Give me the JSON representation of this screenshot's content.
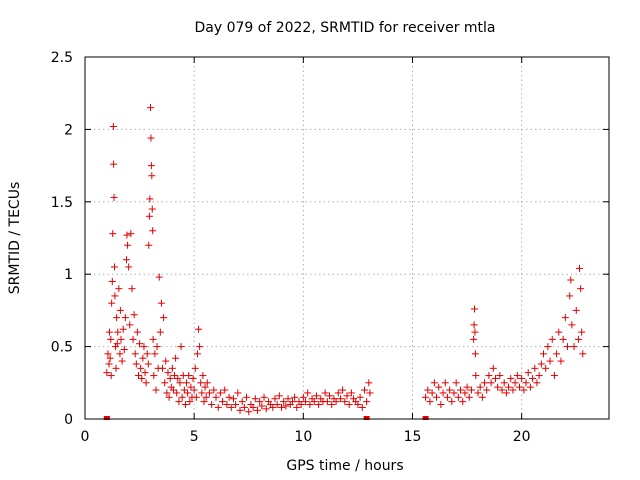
{
  "chart_data": {
    "type": "scatter",
    "title": "Day 079 of 2022, SRMTID for receiver mtla",
    "xlabel": "GPS time / hours",
    "ylabel": "SRMTID / TECUs",
    "xlim": [
      0,
      24
    ],
    "ylim": [
      0,
      2.5
    ],
    "x_ticks": [
      0,
      5,
      10,
      15,
      20
    ],
    "x_tick_labels": [
      "0",
      "5",
      "10",
      "15",
      "20"
    ],
    "y_ticks": [
      0,
      0.5,
      1,
      1.5,
      2,
      2.5
    ],
    "y_tick_labels": [
      "0",
      "0.5",
      "1",
      "1.5",
      "2",
      "2.5"
    ],
    "grid": true,
    "marker": "+",
    "color": "#e00000",
    "series": [
      {
        "name": "SRMTID",
        "points": [
          [
            1.0,
            0.32
          ],
          [
            1.05,
            0.45
          ],
          [
            1.1,
            0.38
          ],
          [
            1.12,
            0.6
          ],
          [
            1.15,
            0.42
          ],
          [
            1.18,
            0.55
          ],
          [
            1.2,
            0.3
          ],
          [
            1.22,
            0.8
          ],
          [
            1.25,
            0.95
          ],
          [
            1.27,
            1.28
          ],
          [
            1.3,
            2.02
          ],
          [
            1.31,
            1.76
          ],
          [
            1.33,
            1.53
          ],
          [
            1.35,
            1.05
          ],
          [
            1.37,
            0.85
          ],
          [
            1.4,
            0.5
          ],
          [
            1.42,
            0.35
          ],
          [
            1.45,
            0.7
          ],
          [
            1.48,
            0.52
          ],
          [
            1.5,
            0.6
          ],
          [
            1.55,
            0.9
          ],
          [
            1.6,
            0.45
          ],
          [
            1.62,
            0.75
          ],
          [
            1.65,
            0.55
          ],
          [
            1.7,
            0.4
          ],
          [
            1.75,
            0.62
          ],
          [
            1.8,
            0.48
          ],
          [
            1.85,
            0.7
          ],
          [
            1.9,
            1.1
          ],
          [
            1.92,
            1.27
          ],
          [
            1.95,
            1.2
          ],
          [
            2.0,
            1.05
          ],
          [
            2.05,
            0.65
          ],
          [
            2.1,
            1.28
          ],
          [
            2.15,
            0.9
          ],
          [
            2.2,
            0.55
          ],
          [
            2.25,
            0.72
          ],
          [
            2.3,
            0.45
          ],
          [
            2.35,
            0.38
          ],
          [
            2.4,
            0.6
          ],
          [
            2.45,
            0.3
          ],
          [
            2.5,
            0.52
          ],
          [
            2.55,
            0.35
          ],
          [
            2.6,
            0.28
          ],
          [
            2.65,
            0.42
          ],
          [
            2.7,
            0.5
          ],
          [
            2.75,
            0.32
          ],
          [
            2.8,
            0.25
          ],
          [
            2.85,
            0.45
          ],
          [
            2.9,
            0.38
          ],
          [
            2.92,
            1.2
          ],
          [
            2.95,
            1.4
          ],
          [
            2.97,
            1.52
          ],
          [
            3.0,
            2.15
          ],
          [
            3.02,
            1.94
          ],
          [
            3.04,
            1.75
          ],
          [
            3.06,
            1.68
          ],
          [
            3.08,
            1.45
          ],
          [
            3.1,
            1.3
          ],
          [
            3.12,
            0.55
          ],
          [
            3.15,
            0.3
          ],
          [
            3.2,
            0.45
          ],
          [
            3.25,
            0.2
          ],
          [
            3.3,
            0.5
          ],
          [
            3.35,
            0.35
          ],
          [
            3.4,
            0.98
          ],
          [
            3.45,
            0.6
          ],
          [
            3.5,
            0.8
          ],
          [
            3.55,
            0.35
          ],
          [
            3.6,
            0.7
          ],
          [
            3.65,
            0.25
          ],
          [
            3.7,
            0.4
          ],
          [
            3.75,
            0.18
          ],
          [
            3.8,
            0.32
          ],
          [
            3.85,
            0.15
          ],
          [
            3.9,
            0.28
          ],
          [
            3.95,
            0.22
          ],
          [
            4.0,
            0.35
          ],
          [
            4.05,
            0.2
          ],
          [
            4.1,
            0.3
          ],
          [
            4.15,
            0.42
          ],
          [
            4.2,
            0.18
          ],
          [
            4.25,
            0.28
          ],
          [
            4.3,
            0.12
          ],
          [
            4.35,
            0.25
          ],
          [
            4.4,
            0.5
          ],
          [
            4.45,
            0.15
          ],
          [
            4.5,
            0.3
          ],
          [
            4.55,
            0.2
          ],
          [
            4.6,
            0.1
          ],
          [
            4.65,
            0.25
          ],
          [
            4.7,
            0.18
          ],
          [
            4.75,
            0.3
          ],
          [
            4.8,
            0.12
          ],
          [
            4.85,
            0.22
          ],
          [
            4.9,
            0.15
          ],
          [
            4.95,
            0.28
          ],
          [
            5.0,
            0.2
          ],
          [
            5.05,
            0.35
          ],
          [
            5.1,
            0.15
          ],
          [
            5.15,
            0.45
          ],
          [
            5.2,
            0.62
          ],
          [
            5.25,
            0.5
          ],
          [
            5.3,
            0.25
          ],
          [
            5.35,
            0.18
          ],
          [
            5.4,
            0.3
          ],
          [
            5.45,
            0.12
          ],
          [
            5.5,
            0.22
          ],
          [
            5.55,
            0.15
          ],
          [
            5.6,
            0.25
          ],
          [
            5.7,
            0.18
          ],
          [
            5.8,
            0.1
          ],
          [
            5.9,
            0.2
          ],
          [
            6.0,
            0.15
          ],
          [
            6.1,
            0.08
          ],
          [
            6.2,
            0.18
          ],
          [
            6.3,
            0.12
          ],
          [
            6.4,
            0.2
          ],
          [
            6.5,
            0.1
          ],
          [
            6.6,
            0.15
          ],
          [
            6.7,
            0.08
          ],
          [
            6.8,
            0.14
          ],
          [
            6.9,
            0.1
          ],
          [
            7.0,
            0.18
          ],
          [
            7.1,
            0.06
          ],
          [
            7.2,
            0.12
          ],
          [
            7.3,
            0.08
          ],
          [
            7.4,
            0.15
          ],
          [
            7.5,
            0.05
          ],
          [
            7.6,
            0.1
          ],
          [
            7.7,
            0.08
          ],
          [
            7.8,
            0.14
          ],
          [
            7.9,
            0.06
          ],
          [
            8.0,
            0.12
          ],
          [
            8.1,
            0.09
          ],
          [
            8.2,
            0.15
          ],
          [
            8.3,
            0.07
          ],
          [
            8.4,
            0.12
          ],
          [
            8.5,
            0.1
          ],
          [
            8.6,
            0.08
          ],
          [
            8.7,
            0.14
          ],
          [
            8.8,
            0.1
          ],
          [
            8.9,
            0.16
          ],
          [
            9.0,
            0.08
          ],
          [
            9.1,
            0.12
          ],
          [
            9.2,
            0.09
          ],
          [
            9.3,
            0.14
          ],
          [
            9.4,
            0.1
          ],
          [
            9.5,
            0.12
          ],
          [
            9.6,
            0.15
          ],
          [
            9.7,
            0.08
          ],
          [
            9.8,
            0.12
          ],
          [
            9.9,
            0.1
          ],
          [
            10.0,
            0.15
          ],
          [
            10.1,
            0.12
          ],
          [
            10.2,
            0.18
          ],
          [
            10.3,
            0.1
          ],
          [
            10.4,
            0.14
          ],
          [
            10.5,
            0.12
          ],
          [
            10.6,
            0.16
          ],
          [
            10.7,
            0.1
          ],
          [
            10.8,
            0.14
          ],
          [
            10.9,
            0.12
          ],
          [
            11.0,
            0.18
          ],
          [
            11.1,
            0.12
          ],
          [
            11.2,
            0.16
          ],
          [
            11.3,
            0.1
          ],
          [
            11.4,
            0.14
          ],
          [
            11.5,
            0.12
          ],
          [
            11.6,
            0.18
          ],
          [
            11.7,
            0.14
          ],
          [
            11.8,
            0.2
          ],
          [
            11.9,
            0.12
          ],
          [
            12.0,
            0.16
          ],
          [
            12.1,
            0.1
          ],
          [
            12.2,
            0.18
          ],
          [
            12.3,
            0.14
          ],
          [
            12.4,
            0.12
          ],
          [
            12.5,
            0.1
          ],
          [
            12.6,
            0.15
          ],
          [
            12.7,
            0.08
          ],
          [
            12.8,
            0.2
          ],
          [
            12.9,
            0.12
          ],
          [
            13.0,
            0.25
          ],
          [
            13.05,
            0.18
          ],
          [
            15.6,
            0.15
          ],
          [
            15.7,
            0.2
          ],
          [
            15.8,
            0.12
          ],
          [
            15.9,
            0.18
          ],
          [
            16.0,
            0.25
          ],
          [
            16.1,
            0.15
          ],
          [
            16.2,
            0.22
          ],
          [
            16.3,
            0.1
          ],
          [
            16.4,
            0.18
          ],
          [
            16.5,
            0.25
          ],
          [
            16.6,
            0.15
          ],
          [
            16.7,
            0.2
          ],
          [
            16.8,
            0.12
          ],
          [
            16.9,
            0.18
          ],
          [
            17.0,
            0.25
          ],
          [
            17.1,
            0.15
          ],
          [
            17.2,
            0.2
          ],
          [
            17.3,
            0.12
          ],
          [
            17.4,
            0.18
          ],
          [
            17.5,
            0.22
          ],
          [
            17.6,
            0.15
          ],
          [
            17.7,
            0.2
          ],
          [
            17.8,
            0.55
          ],
          [
            17.82,
            0.65
          ],
          [
            17.84,
            0.76
          ],
          [
            17.86,
            0.6
          ],
          [
            17.88,
            0.45
          ],
          [
            17.9,
            0.3
          ],
          [
            18.0,
            0.18
          ],
          [
            18.1,
            0.22
          ],
          [
            18.2,
            0.15
          ],
          [
            18.3,
            0.25
          ],
          [
            18.4,
            0.2
          ],
          [
            18.5,
            0.3
          ],
          [
            18.6,
            0.25
          ],
          [
            18.7,
            0.35
          ],
          [
            18.8,
            0.28
          ],
          [
            18.9,
            0.22
          ],
          [
            19.0,
            0.3
          ],
          [
            19.1,
            0.2
          ],
          [
            19.2,
            0.25
          ],
          [
            19.3,
            0.18
          ],
          [
            19.4,
            0.22
          ],
          [
            19.5,
            0.28
          ],
          [
            19.6,
            0.2
          ],
          [
            19.7,
            0.25
          ],
          [
            19.8,
            0.3
          ],
          [
            19.9,
            0.22
          ],
          [
            20.0,
            0.28
          ],
          [
            20.1,
            0.2
          ],
          [
            20.2,
            0.25
          ],
          [
            20.3,
            0.32
          ],
          [
            20.4,
            0.22
          ],
          [
            20.5,
            0.28
          ],
          [
            20.6,
            0.35
          ],
          [
            20.7,
            0.25
          ],
          [
            20.8,
            0.3
          ],
          [
            20.9,
            0.38
          ],
          [
            21.0,
            0.45
          ],
          [
            21.1,
            0.35
          ],
          [
            21.2,
            0.5
          ],
          [
            21.3,
            0.4
          ],
          [
            21.4,
            0.55
          ],
          [
            21.5,
            0.3
          ],
          [
            21.6,
            0.45
          ],
          [
            21.7,
            0.6
          ],
          [
            21.8,
            0.4
          ],
          [
            21.9,
            0.55
          ],
          [
            22.0,
            0.7
          ],
          [
            22.1,
            0.5
          ],
          [
            22.2,
            0.85
          ],
          [
            22.25,
            0.96
          ],
          [
            22.3,
            0.65
          ],
          [
            22.4,
            0.5
          ],
          [
            22.5,
            0.75
          ],
          [
            22.6,
            0.55
          ],
          [
            22.65,
            1.04
          ],
          [
            22.7,
            0.9
          ],
          [
            22.75,
            0.6
          ],
          [
            22.8,
            0.45
          ]
        ]
      }
    ],
    "baseline_markers_x": [
      1.0,
      12.9,
      15.6
    ]
  }
}
